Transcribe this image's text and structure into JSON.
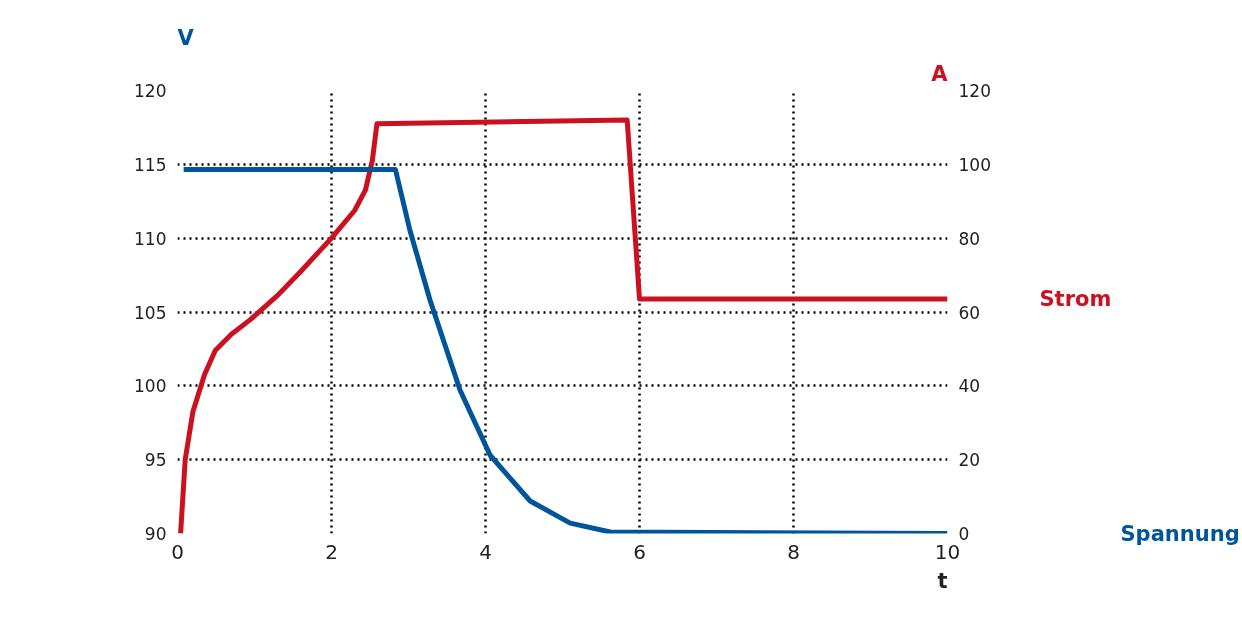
{
  "chart_data": {
    "type": "line",
    "xlabel": "t",
    "ylabel": "V",
    "y2label": "A",
    "xlim": [
      0,
      10
    ],
    "xticks": [
      0,
      2,
      4,
      6,
      8,
      10
    ],
    "ylim": [
      90,
      120
    ],
    "yticks": [
      90,
      95,
      100,
      105,
      110,
      115,
      120
    ],
    "y2lim": [
      0,
      120
    ],
    "y2ticks": [
      0,
      20,
      40,
      60,
      80,
      100,
      120
    ],
    "grid": true,
    "line_style": "solid",
    "legend": false,
    "series": [
      {
        "name": "Strom",
        "color": "#cc1020",
        "axis": "y2",
        "x": [
          0.04,
          0.1,
          0.2,
          0.35,
          0.49,
          0.7,
          0.95,
          1.3,
          1.6,
          2.0,
          2.3,
          2.44,
          2.53,
          2.59,
          5.84,
          6.0,
          10
        ],
        "values": [
          0,
          20,
          33,
          43,
          49.6,
          54,
          58,
          64.5,
          71,
          80,
          87.5,
          93,
          101,
          111,
          112,
          63.5,
          63.5
        ]
      },
      {
        "name": "Spannung",
        "color": "#00559a",
        "x": [
          0.08,
          2.83,
          3.02,
          3.28,
          3.67,
          4.06,
          4.58,
          5.1,
          5.62,
          10
        ],
        "values": [
          114.65,
          114.65,
          110.5,
          105.8,
          99.7,
          95.3,
          92.2,
          90.7,
          90.1,
          90
        ]
      }
    ]
  }
}
